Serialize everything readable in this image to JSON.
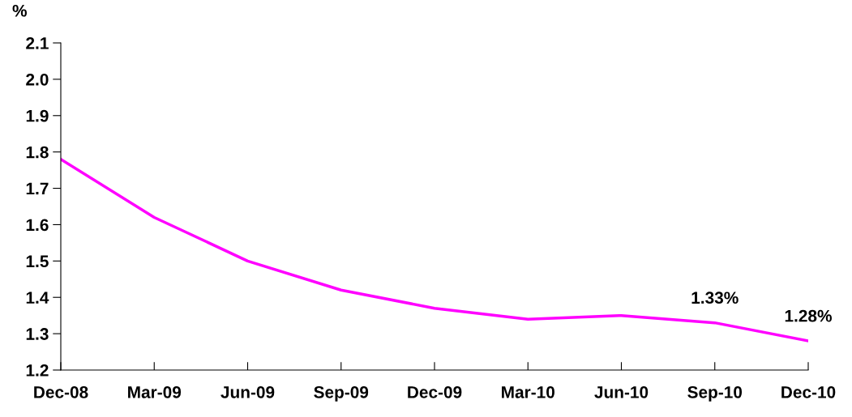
{
  "chart_data": {
    "type": "line",
    "ylabel": "%",
    "categories": [
      "Dec-08",
      "Mar-09",
      "Jun-09",
      "Sep-09",
      "Dec-09",
      "Mar-10",
      "Jun-10",
      "Sep-10",
      "Dec-10"
    ],
    "series": [
      {
        "color": "#ff00ff",
        "values": [
          1.78,
          1.62,
          1.5,
          1.42,
          1.37,
          1.34,
          1.35,
          1.33,
          1.28
        ],
        "value_labels": [
          null,
          null,
          null,
          null,
          null,
          null,
          null,
          "1.33%",
          "1.28%"
        ]
      }
    ],
    "ylim": [
      1.2,
      2.1
    ],
    "yticks": [
      1.2,
      1.3,
      1.4,
      1.5,
      1.6,
      1.7,
      1.8,
      1.9,
      {
        "value": 2,
        "label": "2.0"
      },
      2.1
    ],
    "grid": false,
    "marker": "none",
    "line_style": "solid"
  }
}
